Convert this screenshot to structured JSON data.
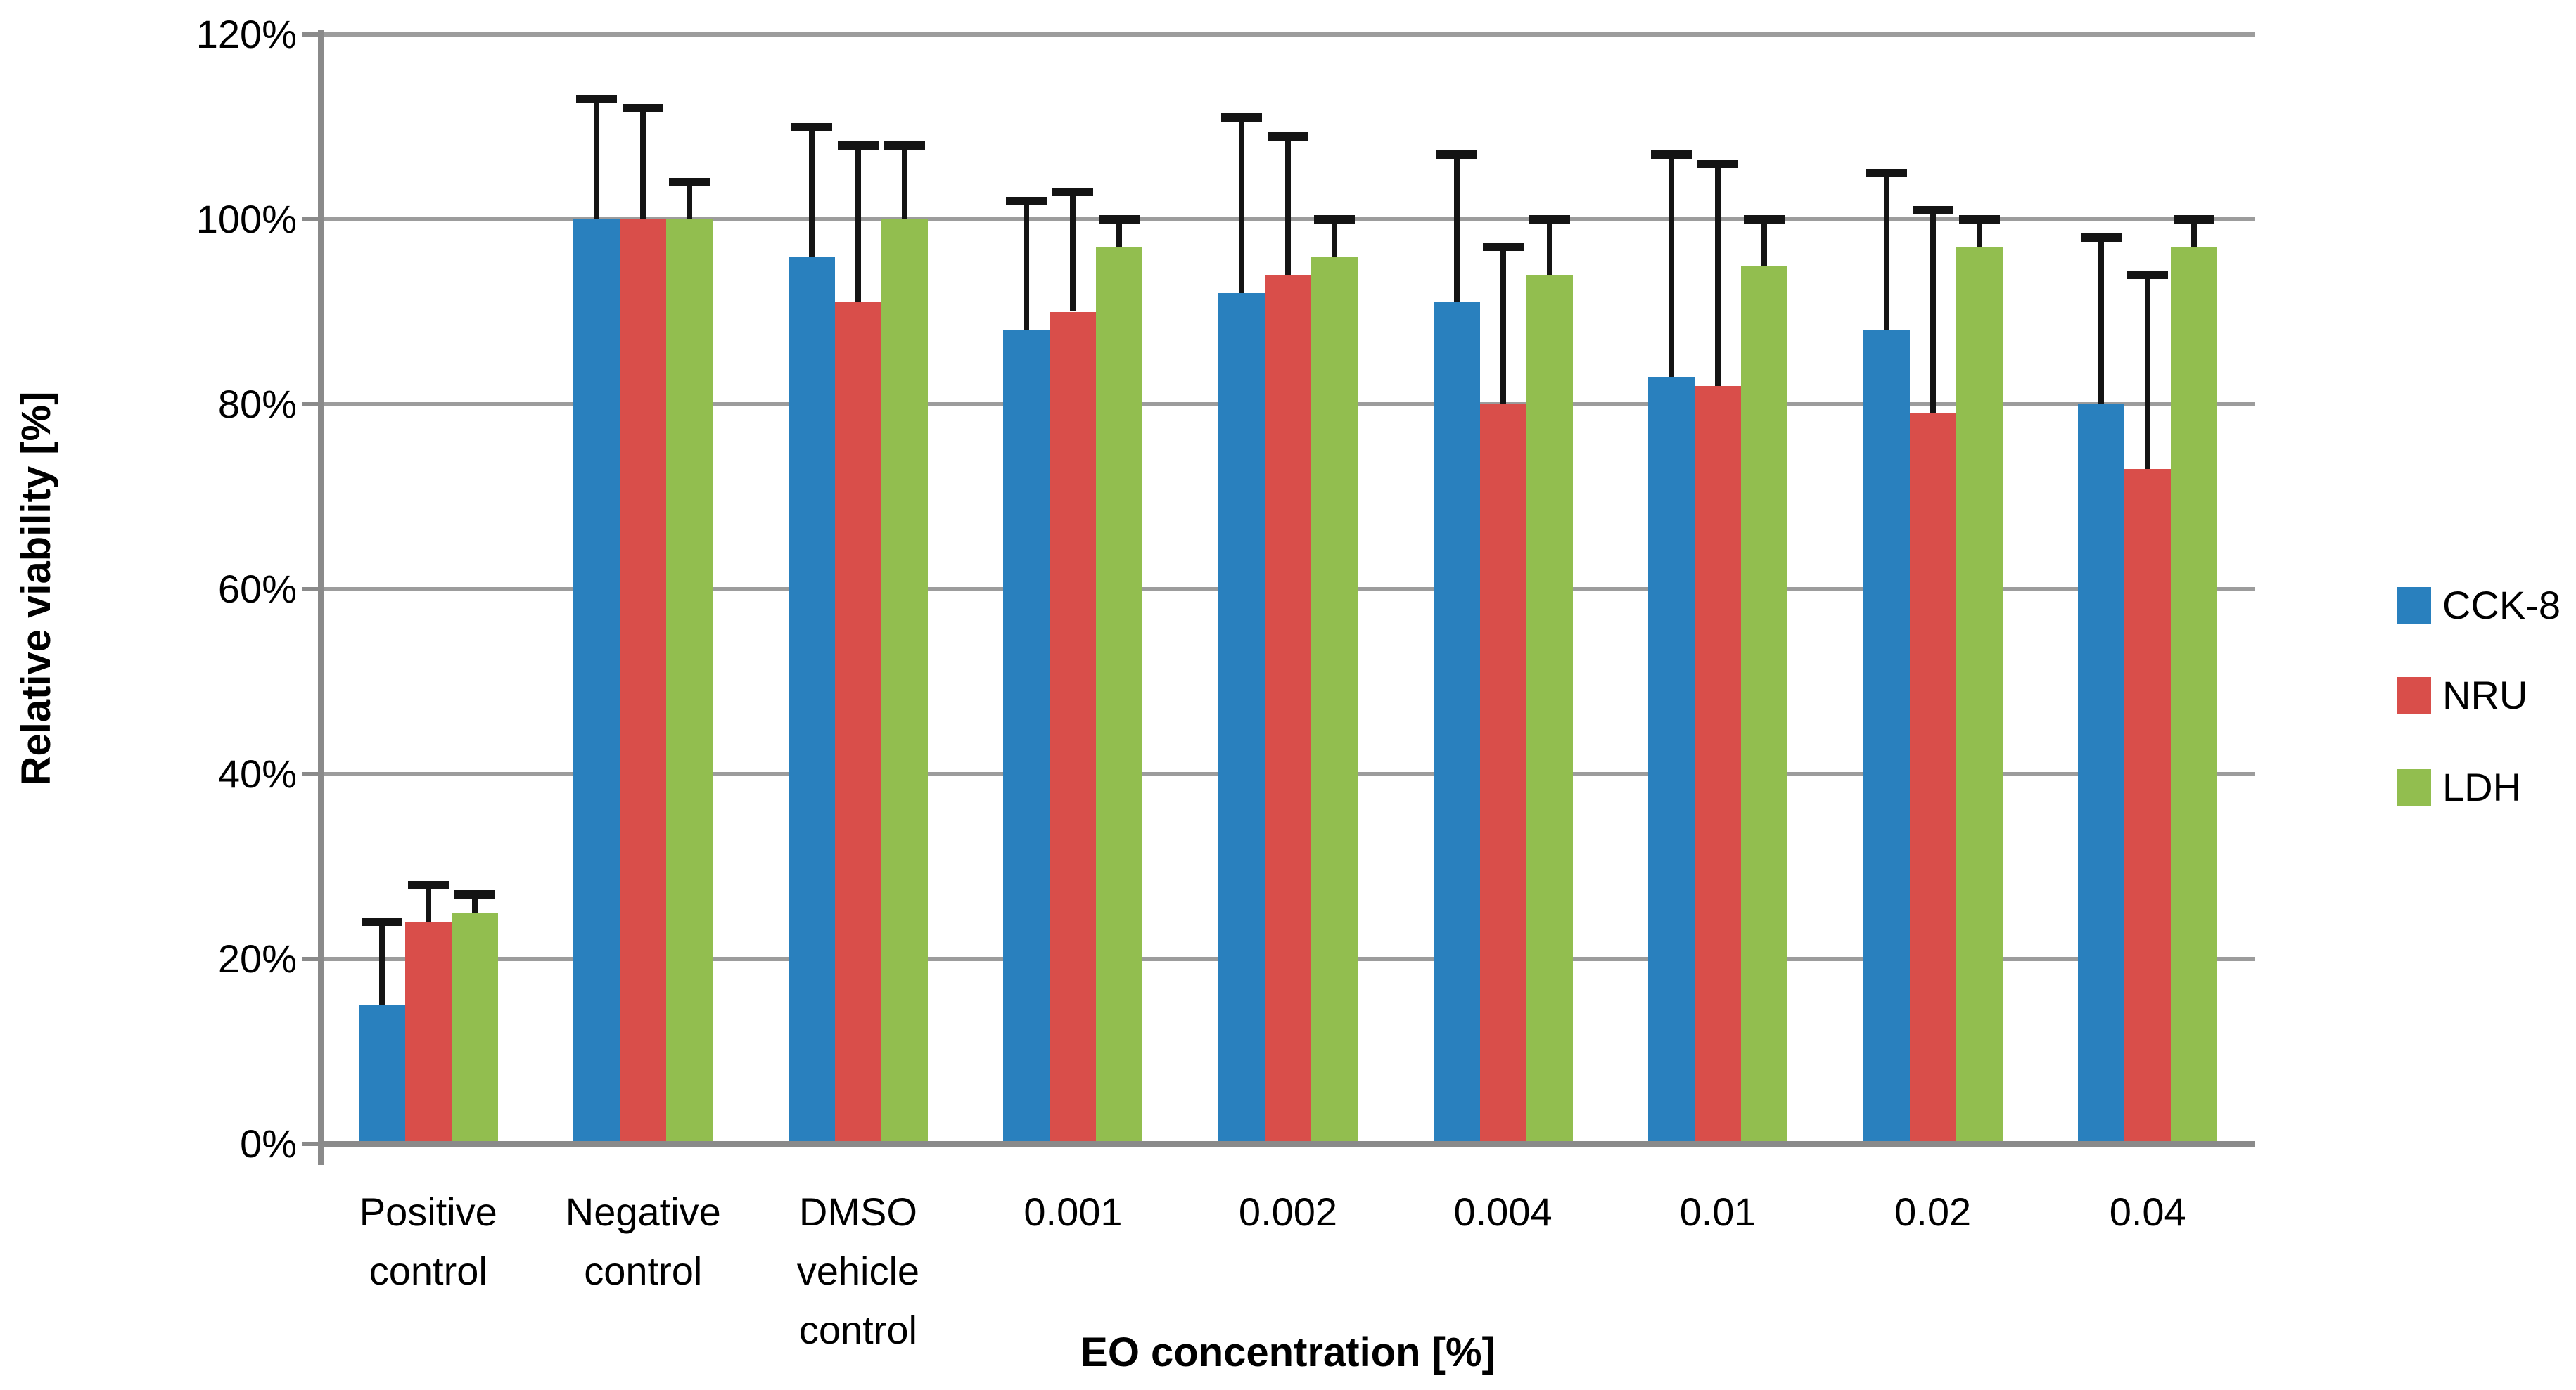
{
  "chart_data": {
    "type": "bar",
    "title": "",
    "xlabel": "EO concentration [%]",
    "ylabel": "Relative viability [%]",
    "ylim": [
      0,
      120
    ],
    "grid": true,
    "legend_position": "right",
    "yticks": [
      {
        "value": 0,
        "label": "0%"
      },
      {
        "value": 20,
        "label": "20%"
      },
      {
        "value": 40,
        "label": "40%"
      },
      {
        "value": 60,
        "label": "60%"
      },
      {
        "value": 80,
        "label": "80%"
      },
      {
        "value": 100,
        "label": "100%"
      },
      {
        "value": 120,
        "label": "120%"
      }
    ],
    "categories": [
      "Positive control",
      "Negative control",
      "DMSO vehicle control",
      "0.001",
      "0.002",
      "0.004",
      "0.01",
      "0.02",
      "0.04"
    ],
    "category_label_lines": [
      [
        "Positive",
        "control"
      ],
      [
        "Negative",
        "control"
      ],
      [
        "DMSO",
        "vehicle",
        "control"
      ],
      [
        "0.001"
      ],
      [
        "0.002"
      ],
      [
        "0.004"
      ],
      [
        "0.01"
      ],
      [
        "0.02"
      ],
      [
        "0.04"
      ]
    ],
    "series": [
      {
        "name": "CCK-8",
        "color": "#2980BE",
        "values": [
          15,
          100,
          96,
          88,
          92,
          91,
          83,
          88,
          80
        ],
        "error_plus": [
          9,
          13,
          14,
          14,
          19,
          16,
          24,
          17,
          18
        ]
      },
      {
        "name": "NRU",
        "color": "#D94E4A",
        "values": [
          24,
          100,
          91,
          90,
          94,
          80,
          82,
          79,
          73
        ],
        "error_plus": [
          4,
          12,
          17,
          13,
          15,
          17,
          24,
          22,
          21
        ]
      },
      {
        "name": "LDH",
        "color": "#92BE4F",
        "values": [
          25,
          100,
          100,
          97,
          96,
          94,
          95,
          97,
          97
        ],
        "error_plus": [
          2,
          4,
          8,
          3,
          4,
          6,
          5,
          3,
          3
        ]
      }
    ],
    "error_bar_color": "#141414",
    "gridline_color": "#9C9C9C",
    "axis_color": "#8A8A8A"
  }
}
